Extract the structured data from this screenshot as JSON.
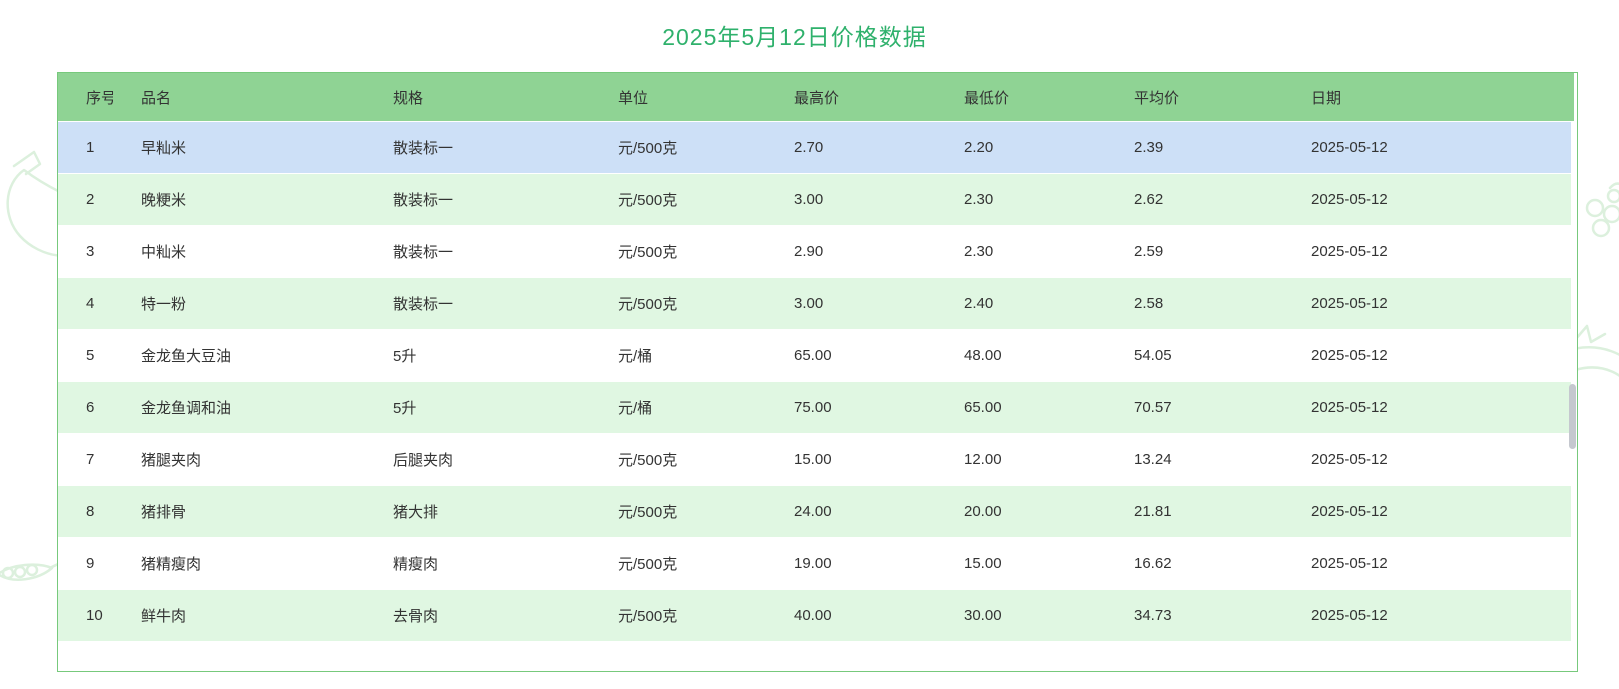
{
  "page": {
    "title": "2025年5月12日价格数据"
  },
  "table": {
    "columns": [
      "序号",
      "品名",
      "规格",
      "单位",
      "最高价",
      "最低价",
      "平均价",
      "日期"
    ],
    "rows": [
      [
        "1",
        "早籼米",
        "散装标一",
        "元/500克",
        "2.70",
        "2.20",
        "2.39",
        "2025-05-12"
      ],
      [
        "2",
        "晚粳米",
        "散装标一",
        "元/500克",
        "3.00",
        "2.30",
        "2.62",
        "2025-05-12"
      ],
      [
        "3",
        "中籼米",
        "散装标一",
        "元/500克",
        "2.90",
        "2.30",
        "2.59",
        "2025-05-12"
      ],
      [
        "4",
        "特一粉",
        "散装标一",
        "元/500克",
        "3.00",
        "2.40",
        "2.58",
        "2025-05-12"
      ],
      [
        "5",
        "金龙鱼大豆油",
        "5升",
        "元/桶",
        "65.00",
        "48.00",
        "54.05",
        "2025-05-12"
      ],
      [
        "6",
        "金龙鱼调和油",
        "5升",
        "元/桶",
        "75.00",
        "65.00",
        "70.57",
        "2025-05-12"
      ],
      [
        "7",
        "猪腿夹肉",
        "后腿夹肉",
        "元/500克",
        "15.00",
        "12.00",
        "13.24",
        "2025-05-12"
      ],
      [
        "8",
        "猪排骨",
        "猪大排",
        "元/500克",
        "24.00",
        "20.00",
        "21.81",
        "2025-05-12"
      ],
      [
        "9",
        "猪精瘦肉",
        "精瘦肉",
        "元/500克",
        "19.00",
        "15.00",
        "16.62",
        "2025-05-12"
      ],
      [
        "10",
        "鲜牛肉",
        "去骨肉",
        "元/500克",
        "40.00",
        "30.00",
        "34.73",
        "2025-05-12"
      ]
    ],
    "highlighted_row_index": 0
  },
  "colors": {
    "title_green": "#2fb16c",
    "header_bg": "#8fd394",
    "stripe_bg": "#e0f7e2",
    "highlight_bg": "#cde0f7",
    "border_green": "#77c97c",
    "scrollbar_thumb": "#c5c8cf",
    "sketch_green": "#dcf0dd"
  }
}
